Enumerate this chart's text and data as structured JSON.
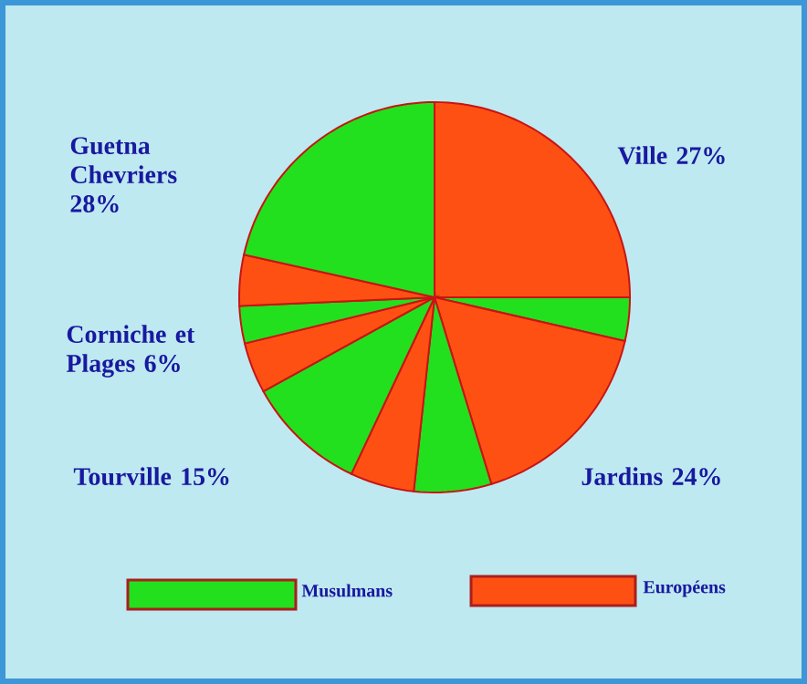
{
  "chart_data": {
    "type": "pie",
    "categories": [
      null,
      null,
      null,
      null,
      null,
      null,
      null,
      null,
      null,
      null
    ],
    "values": [
      25,
      3.6,
      16.7,
      6.4,
      5.3,
      10,
      4.2,
      3.1,
      4.2,
      21.5
    ],
    "colors": [
      "#ff5014",
      "#22e01e",
      "#ff5014",
      "#22e01e",
      "#ff5014",
      "#22e01e",
      "#ff5014",
      "#22e01e",
      "#ff5014",
      "#22e01e"
    ],
    "annotations": [
      "Ville 27%",
      "Jardins 24%",
      "Tourville 15%",
      "Corniche et Plages 6%",
      "Guetna Chevriers 28%",
      "Musulmans",
      "Européens"
    ]
  }
}
